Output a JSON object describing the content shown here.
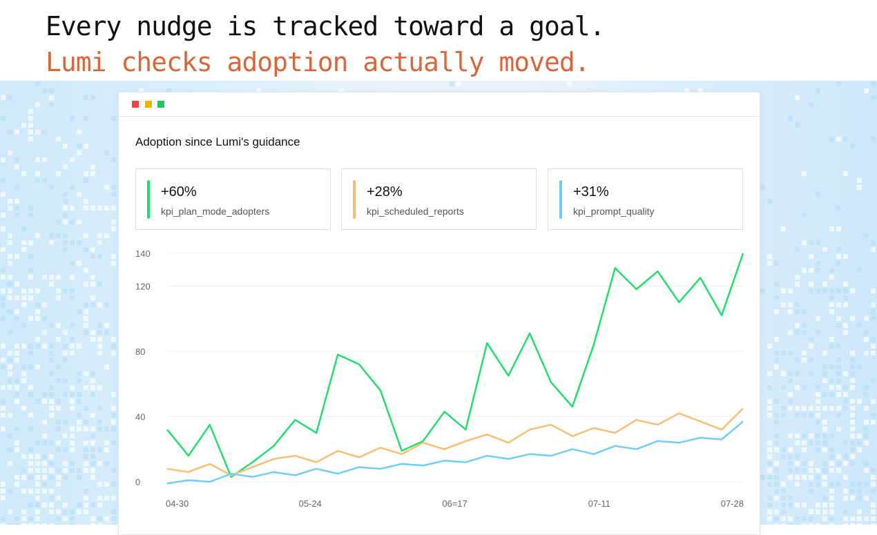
{
  "headline": {
    "line1": "Every nudge is tracked toward a goal.",
    "line2": "Lumi checks adoption actually moved."
  },
  "colors": {
    "accent": "#d9663a",
    "green": "#22dd6d",
    "orange": "#fbbd74",
    "blue": "#72cdf6"
  },
  "window": {
    "title": "Adoption since Lumi's guidance"
  },
  "kpis": [
    {
      "value": "+60%",
      "name": "kpi_plan_mode_adopters",
      "color": "#22dd6d"
    },
    {
      "value": "+28%",
      "name": "kpi_scheduled_reports",
      "color": "#fbbd74"
    },
    {
      "value": "+31%",
      "name": "kpi_prompt_quality",
      "color": "#72cdf6"
    }
  ],
  "chart_data": {
    "type": "line",
    "x_tick_labels": [
      "04-30",
      "05-24",
      "06=17",
      "07-11",
      "07-28"
    ],
    "y_ticks": [
      0,
      40,
      80,
      120,
      140
    ],
    "ylim": [
      0,
      140
    ],
    "grid": true,
    "series": [
      {
        "name": "kpi_plan_mode_adopters",
        "color": "#22dd6d",
        "values": [
          32,
          16,
          35,
          3,
          12,
          22,
          38,
          30,
          78,
          72,
          56,
          19,
          25,
          43,
          32,
          85,
          65,
          91,
          61,
          46,
          84,
          131,
          118,
          129,
          110,
          125,
          102,
          140
        ]
      },
      {
        "name": "kpi_scheduled_reports",
        "color": "#fbbd74",
        "values": [
          8,
          6,
          11,
          4,
          9,
          14,
          16,
          12,
          19,
          15,
          21,
          17,
          24,
          20,
          25,
          29,
          24,
          32,
          35,
          28,
          33,
          30,
          38,
          35,
          42,
          37,
          32,
          45
        ]
      },
      {
        "name": "kpi_prompt_quality",
        "color": "#72cdf6",
        "values": [
          -1,
          1,
          0,
          5,
          3,
          6,
          4,
          8,
          5,
          9,
          8,
          11,
          10,
          13,
          12,
          16,
          14,
          17,
          16,
          20,
          17,
          22,
          20,
          25,
          24,
          27,
          26,
          37
        ]
      }
    ]
  }
}
